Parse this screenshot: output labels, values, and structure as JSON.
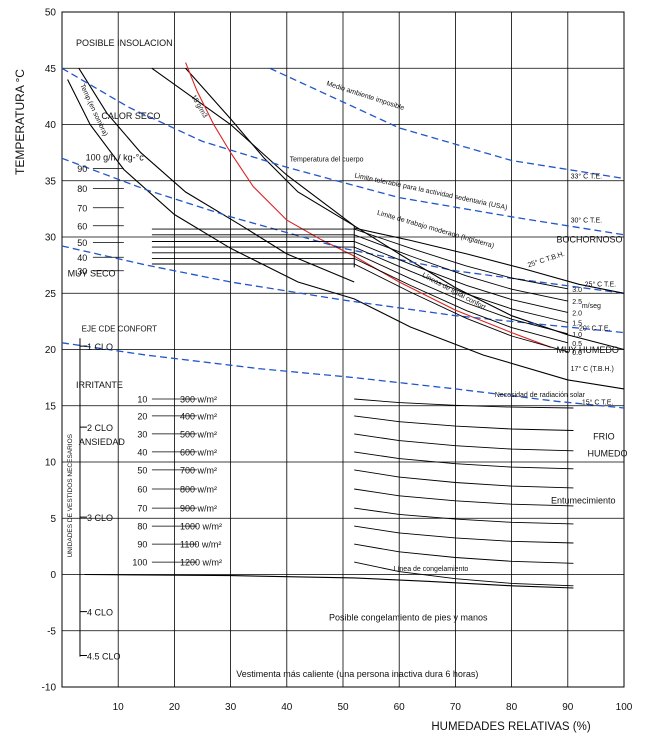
{
  "chart_data": {
    "type": "line",
    "title": "",
    "xlabel": "HUMEDADES RELATIVAS (%)",
    "ylabel": "TEMPERATURA °C",
    "xlim": [
      0,
      100
    ],
    "ylim": [
      -10,
      50
    ],
    "x_ticks": [
      10,
      20,
      30,
      40,
      50,
      60,
      70,
      80,
      90,
      100
    ],
    "y_ticks": [
      -10,
      -5,
      0,
      5,
      10,
      15,
      20,
      25,
      30,
      35,
      40,
      45,
      50
    ],
    "grid": true,
    "colors": {
      "grid": "#000000",
      "curve": "#000000",
      "red": "#dd2222",
      "blue": "#2255cc"
    },
    "zones": [
      {
        "text": "POSIBLE INSOLACION",
        "x": 2.5,
        "y": 47
      },
      {
        "text": "CALOR SECO",
        "x": 7,
        "y": 40.5
      },
      {
        "text": "MUY SECO",
        "x": 1,
        "y": 26.5
      },
      {
        "text": "BOCHORNOSO",
        "x": 88,
        "y": 29.5
      },
      {
        "text": "MUY HUMEDO",
        "x": 88,
        "y": 19.7
      },
      {
        "text": "FRIO",
        "x": 94.5,
        "y": 12
      },
      {
        "text": "HUMEDO",
        "x": 93.5,
        "y": 10.5
      },
      {
        "text": "Entumecimiento",
        "x": 87,
        "y": 6.3
      },
      {
        "text": "IRRITANTE",
        "x": 2.5,
        "y": 16.6
      },
      {
        "text": "ANSIEDAD",
        "x": 3,
        "y": 11.5
      },
      {
        "text": "Posible congelamiento de pies y manos",
        "x": 47.5,
        "y": -4.1
      },
      {
        "text": "Vestimenta más caliente  (una persona inactiva dura 6 horas)",
        "x": 31,
        "y": -9.1
      }
    ],
    "curve_labels": [
      {
        "text": "Medio ambiente imposible",
        "x": 47,
        "y": 43.5,
        "rot": 18
      },
      {
        "text": "Temperatura del cuerpo",
        "x": 40.5,
        "y": 36.7,
        "rot": 0
      },
      {
        "text": "Limite tolerable para la actividad sedentaria (USA)",
        "x": 52,
        "y": 35.3,
        "rot": 12
      },
      {
        "text": "Limite de trabajo moderado  (Inglaterra)",
        "x": 56,
        "y": 32,
        "rot": 16
      },
      {
        "text": "Líneas de igual confort",
        "x": 64,
        "y": 26.5,
        "rot": 28
      },
      {
        "text": "Necesidad de radiación solar",
        "x": 77,
        "y": 15.8,
        "rot": 0
      },
      {
        "text": "Línea de congelamiento",
        "x": 59,
        "y": 0.3,
        "rot": 0
      },
      {
        "text": "Temp.(en sombra)",
        "x": 3.2,
        "y": 43.5,
        "rot": 65
      },
      {
        "text": "15 g/m3",
        "x": 23,
        "y": 42.5,
        "rot": 60
      },
      {
        "text": "33° C  T.E.",
        "x": 90.5,
        "y": 35.2,
        "rot": 0
      },
      {
        "text": "30° C  T.E.",
        "x": 90.5,
        "y": 31.3,
        "rot": 0
      },
      {
        "text": "25° C  T.B.H.",
        "x": 83,
        "y": 27.3,
        "rot": -18
      },
      {
        "text": "25° C  T.E.",
        "x": 93,
        "y": 25.6,
        "rot": 0
      },
      {
        "text": "20° C  T.E.",
        "x": 92,
        "y": 21.7,
        "rot": 0
      },
      {
        "text": "17° C  (T.B.H.)",
        "x": 90.5,
        "y": 18.1,
        "rot": 0
      },
      {
        "text": "15° C  T.E.",
        "x": 92.5,
        "y": 15.1,
        "rot": 0
      },
      {
        "text": "m/seg",
        "x": 92.5,
        "y": 23.7,
        "rot": 0
      }
    ],
    "air_velocity_labels": [
      "3.0",
      "2.5",
      "2.0",
      "1.5",
      "1.0",
      "0.5",
      "0.0"
    ],
    "humidity_label": "100 g/h / kg-°c",
    "humidity_values": [
      "90",
      "80",
      "70",
      "60",
      "50",
      "40",
      "30"
    ],
    "clothing_axis_title": "UNIDADES DE VESTIDOS NECESARIOS",
    "clothing_title": "EJE CDE CONFORT",
    "clothing_levels": [
      {
        "label": "1  CLO",
        "y": 20.3
      },
      {
        "label": "2  CLO",
        "y": 13.1
      },
      {
        "label": "3  CLO",
        "y": 5.1
      },
      {
        "label": "4  CLO",
        "y": -3.3
      },
      {
        "label": "4.5  CLO",
        "y": -7.2
      }
    ],
    "radiation_values": [
      "10",
      "20",
      "30",
      "40",
      "50",
      "60",
      "70",
      "80",
      "90",
      "100"
    ],
    "radiation_watts": [
      "300 w/m²",
      "400 w/m²",
      "500 w/m²",
      "600 w/m²",
      "700 w/m²",
      "800 w/m²",
      "900 w/m²",
      "1000 w/m²",
      "1100 w/m²",
      "1200 w/m²"
    ],
    "series": [
      {
        "id": "impossible",
        "color": "black",
        "dash": false,
        "points": [
          [
            16,
            45
          ],
          [
            30,
            40
          ],
          [
            40,
            35.5
          ],
          [
            52,
            31
          ],
          [
            60,
            28.5
          ],
          [
            70,
            25.5
          ],
          [
            80,
            23
          ],
          [
            90,
            21.3
          ],
          [
            100,
            20
          ]
        ]
      },
      {
        "id": "body-temp",
        "color": "black",
        "dash": false,
        "points": [
          [
            22,
            45
          ],
          [
            30,
            40.5
          ],
          [
            36,
            37
          ],
          [
            42,
            34
          ],
          [
            52,
            31
          ]
        ]
      },
      {
        "id": "shade-temp",
        "color": "black",
        "dash": false,
        "points": [
          [
            3,
            45
          ],
          [
            8,
            41
          ],
          [
            14,
            37.5
          ],
          [
            22,
            34
          ],
          [
            32,
            31
          ],
          [
            40,
            28.5
          ],
          [
            52,
            26
          ]
        ]
      },
      {
        "id": "shade-temp-2",
        "color": "black",
        "dash": false,
        "points": [
          [
            1,
            44
          ],
          [
            5,
            40
          ],
          [
            11,
            36
          ],
          [
            20,
            32
          ],
          [
            30,
            29
          ],
          [
            42,
            26
          ],
          [
            52,
            24.5
          ],
          [
            62,
            22
          ],
          [
            75,
            19.5
          ],
          [
            90,
            17.3
          ],
          [
            100,
            16.5
          ]
        ]
      },
      {
        "id": "iso-15g",
        "color": "red",
        "dash": false,
        "points": [
          [
            22,
            45.5
          ],
          [
            24,
            43
          ],
          [
            27,
            40
          ],
          [
            30,
            37.5
          ],
          [
            34,
            34.5
          ],
          [
            40,
            31.5
          ],
          [
            46,
            29.8
          ],
          [
            52,
            28.3
          ],
          [
            60,
            26
          ],
          [
            70,
            23.5
          ],
          [
            80,
            21.5
          ],
          [
            87,
            20.2
          ]
        ]
      },
      {
        "id": "te-33",
        "color": "blue",
        "dash": true,
        "points": [
          [
            37,
            45
          ],
          [
            50,
            42
          ],
          [
            60,
            39.7
          ],
          [
            80,
            36.8
          ],
          [
            100,
            35.2
          ]
        ]
      },
      {
        "id": "te-30",
        "color": "blue",
        "dash": true,
        "points": [
          [
            0,
            45
          ],
          [
            12,
            41.5
          ],
          [
            25,
            38.5
          ],
          [
            40,
            36.2
          ],
          [
            60,
            33.5
          ],
          [
            80,
            31.8
          ],
          [
            100,
            30.2
          ]
        ]
      },
      {
        "id": "te-25",
        "color": "blue",
        "dash": true,
        "points": [
          [
            0,
            37
          ],
          [
            15,
            34.2
          ],
          [
            30,
            31.8
          ],
          [
            50,
            29
          ],
          [
            70,
            27
          ],
          [
            88,
            25.8
          ],
          [
            100,
            25
          ]
        ]
      },
      {
        "id": "te-20",
        "color": "blue",
        "dash": true,
        "points": [
          [
            0,
            29.2
          ],
          [
            15,
            27.5
          ],
          [
            30,
            26
          ],
          [
            50,
            24.4
          ],
          [
            70,
            23
          ],
          [
            88,
            22.1
          ],
          [
            100,
            21.5
          ]
        ]
      },
      {
        "id": "te-15",
        "color": "blue",
        "dash": true,
        "points": [
          [
            0,
            20.6
          ],
          [
            15,
            19.5
          ],
          [
            35,
            18.3
          ],
          [
            52,
            17.5
          ],
          [
            70,
            16.5
          ],
          [
            88,
            15.4
          ],
          [
            100,
            14.8
          ]
        ]
      },
      {
        "id": "limit-usa",
        "color": "black",
        "dash": false,
        "points": [
          [
            52,
            30.8
          ],
          [
            62,
            29.7
          ],
          [
            72,
            28.5
          ],
          [
            82,
            27.2
          ],
          [
            92,
            25.8
          ],
          [
            100,
            25
          ]
        ]
      }
    ],
    "comfort_lines": {
      "x_start": 16,
      "x_end": 52,
      "y_values": [
        30.7,
        30.2,
        29.6,
        29.1,
        28.6,
        28.1,
        27.6
      ],
      "right_end_y": [
        25.4,
        24.3,
        23.3,
        22.4,
        21.4,
        20.6,
        19.8
      ]
    },
    "radiation_lines": {
      "y_values": [
        15.6,
        14.1,
        12.5,
        10.9,
        9.3,
        7.6,
        5.9,
        4.3,
        2.7,
        1.1
      ],
      "right_end_y": [
        14.8,
        12.8,
        11.0,
        9.4,
        7.7,
        6.1,
        4.5,
        2.8,
        1.0,
        -1.0
      ]
    }
  }
}
